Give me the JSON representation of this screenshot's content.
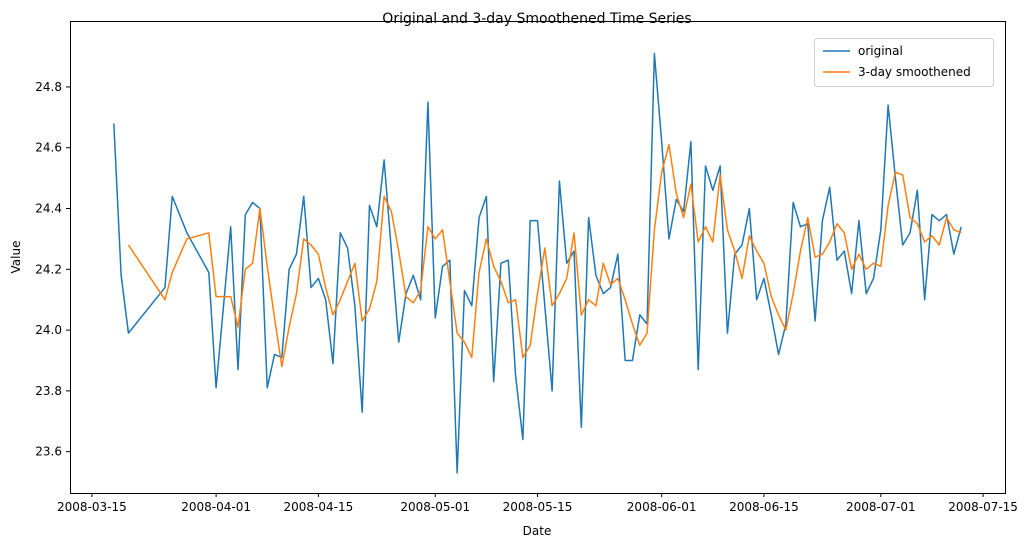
{
  "chart_data": {
    "type": "line",
    "title": "Original and 3-day Smoothened Time Series",
    "xlabel": "Date",
    "ylabel": "Value",
    "xlim": [
      "2008-03-12",
      "2008-07-18"
    ],
    "ylim": [
      23.464,
      25.017
    ],
    "x_ticks": [
      "2008-03-15",
      "2008-04-01",
      "2008-04-15",
      "2008-05-01",
      "2008-05-15",
      "2008-06-01",
      "2008-06-15",
      "2008-07-01",
      "2008-07-15"
    ],
    "y_ticks": [
      "23.6",
      "23.8",
      "24.0",
      "24.2",
      "24.4",
      "24.6",
      "24.8"
    ],
    "grid": false,
    "legend_position": "top-right",
    "x": [
      "2008-03-18",
      "2008-03-19",
      "2008-03-20",
      "2008-03-25",
      "2008-03-26",
      "2008-03-28",
      "2008-03-31",
      "2008-04-01",
      "2008-04-03",
      "2008-04-04",
      "2008-04-05",
      "2008-04-06",
      "2008-04-07",
      "2008-04-08",
      "2008-04-09",
      "2008-04-10",
      "2008-04-11",
      "2008-04-12",
      "2008-04-13",
      "2008-04-14",
      "2008-04-15",
      "2008-04-16",
      "2008-04-17",
      "2008-04-18",
      "2008-04-19",
      "2008-04-20",
      "2008-04-21",
      "2008-04-22",
      "2008-04-23",
      "2008-04-24",
      "2008-04-25",
      "2008-04-26",
      "2008-04-27",
      "2008-04-28",
      "2008-04-29",
      "2008-04-30",
      "2008-05-01",
      "2008-05-02",
      "2008-05-03",
      "2008-05-04",
      "2008-05-05",
      "2008-05-06",
      "2008-05-07",
      "2008-05-08",
      "2008-05-09",
      "2008-05-10",
      "2008-05-11",
      "2008-05-12",
      "2008-05-13",
      "2008-05-14",
      "2008-05-15",
      "2008-05-16",
      "2008-05-17",
      "2008-05-18",
      "2008-05-19",
      "2008-05-20",
      "2008-05-21",
      "2008-05-22",
      "2008-05-23",
      "2008-05-24",
      "2008-05-25",
      "2008-05-26",
      "2008-05-27",
      "2008-05-28",
      "2008-05-29",
      "2008-05-30",
      "2008-05-31",
      "2008-06-01",
      "2008-06-02",
      "2008-06-03",
      "2008-06-04",
      "2008-06-05",
      "2008-06-06",
      "2008-06-07",
      "2008-06-08",
      "2008-06-09",
      "2008-06-10",
      "2008-06-11",
      "2008-06-12",
      "2008-06-13",
      "2008-06-14",
      "2008-06-15",
      "2008-06-16",
      "2008-06-17",
      "2008-06-18",
      "2008-06-19",
      "2008-06-20",
      "2008-06-21",
      "2008-06-22",
      "2008-06-23",
      "2008-06-24",
      "2008-06-25",
      "2008-06-26",
      "2008-06-27",
      "2008-06-28",
      "2008-06-29",
      "2008-06-30",
      "2008-07-01",
      "2008-07-02",
      "2008-07-03",
      "2008-07-04",
      "2008-07-05",
      "2008-07-06",
      "2008-07-07",
      "2008-07-08",
      "2008-07-09",
      "2008-07-10",
      "2008-07-11",
      "2008-07-12"
    ],
    "series": [
      {
        "name": "original",
        "color": "#1f77b4",
        "values": [
          24.68,
          24.18,
          23.99,
          24.14,
          24.44,
          24.32,
          24.19,
          23.81,
          24.34,
          23.87,
          24.38,
          24.42,
          24.4,
          23.81,
          23.92,
          23.91,
          24.2,
          24.25,
          24.44,
          24.14,
          24.17,
          24.1,
          23.89,
          24.32,
          24.27,
          24.08,
          23.73,
          24.41,
          24.34,
          24.56,
          24.26,
          23.96,
          24.12,
          24.18,
          24.1,
          24.75,
          24.04,
          24.21,
          24.23,
          23.53,
          24.13,
          24.08,
          24.37,
          24.44,
          23.83,
          24.22,
          24.23,
          23.85,
          23.64,
          24.36,
          24.36,
          24.08,
          23.8,
          24.49,
          24.22,
          24.26,
          23.68,
          24.37,
          24.18,
          24.12,
          24.14,
          24.25,
          23.9,
          23.9,
          24.05,
          24.02,
          24.91,
          24.62,
          24.3,
          24.43,
          24.39,
          24.62,
          23.87,
          24.54,
          24.46,
          24.54,
          23.99,
          24.25,
          24.28,
          24.4,
          24.1,
          24.17,
          24.05,
          23.92,
          24.02,
          24.42,
          24.34,
          24.35,
          24.03,
          24.36,
          24.47,
          24.23,
          24.26,
          24.12,
          24.36,
          24.12,
          24.17,
          24.33,
          24.74,
          24.5,
          24.28,
          24.32,
          24.46,
          24.1,
          24.38,
          24.36,
          24.38,
          24.25,
          24.34
        ]
      },
      {
        "name": "3-day smoothened",
        "color": "#ff7f0e",
        "values": [
          null,
          null,
          24.28,
          24.1,
          24.19,
          24.3,
          24.32,
          24.11,
          24.11,
          24.01,
          24.2,
          24.22,
          24.4,
          24.21,
          24.04,
          23.88,
          24.01,
          24.12,
          24.3,
          24.28,
          24.25,
          24.14,
          24.05,
          24.1,
          24.16,
          24.22,
          24.03,
          24.07,
          24.16,
          24.44,
          24.39,
          24.26,
          24.11,
          24.09,
          24.13,
          24.34,
          24.3,
          24.33,
          24.16,
          23.99,
          23.96,
          23.91,
          24.19,
          24.3,
          24.21,
          24.16,
          24.09,
          24.1,
          23.91,
          23.95,
          24.12,
          24.27,
          24.08,
          24.12,
          24.17,
          24.32,
          24.05,
          24.1,
          24.08,
          24.22,
          24.15,
          24.17,
          24.1,
          24.02,
          23.95,
          23.99,
          24.33,
          24.52,
          24.61,
          24.45,
          24.37,
          24.48,
          24.29,
          24.34,
          24.29,
          24.51,
          24.33,
          24.26,
          24.17,
          24.31,
          24.26,
          24.22,
          24.11,
          24.05,
          24.0,
          24.12,
          24.26,
          24.37,
          24.24,
          24.25,
          24.29,
          24.35,
          24.32,
          24.2,
          24.25,
          24.2,
          24.22,
          24.21,
          24.41,
          24.52,
          24.51,
          24.37,
          24.35,
          24.29,
          24.31,
          24.28,
          24.37,
          24.33,
          24.32
        ]
      }
    ]
  }
}
